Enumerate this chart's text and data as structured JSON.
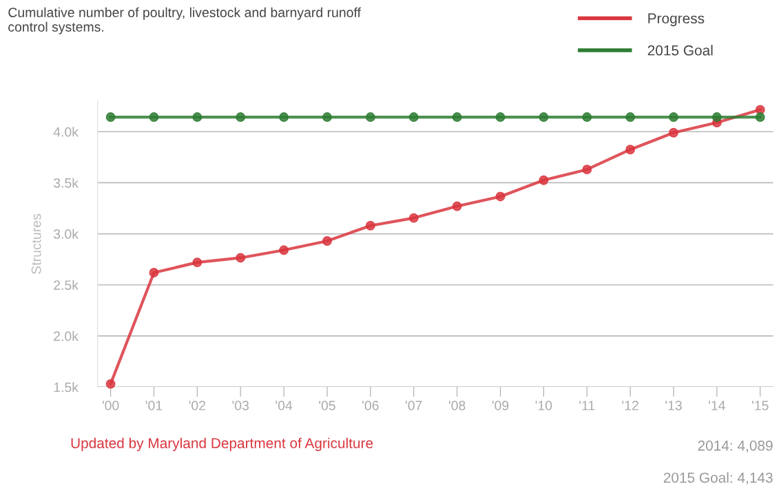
{
  "chart_data": {
    "type": "line",
    "title": "Cumulative number of poultry, livestock and barnyard runoff\ncontrol systems.",
    "ylabel": "Structures",
    "categories": [
      "'00",
      "'01",
      "'02",
      "'03",
      "'04",
      "'05",
      "'06",
      "'07",
      "'08",
      "'09",
      "'10",
      "'11",
      "'12",
      "'13",
      "'14",
      "'15"
    ],
    "series": [
      {
        "name": "Progress",
        "color": "#d9363e",
        "values": [
          1530,
          2620,
          2720,
          2765,
          2840,
          2930,
          3080,
          3155,
          3270,
          3365,
          3525,
          3630,
          3825,
          3990,
          4089,
          4215
        ]
      },
      {
        "name": "2015 Goal",
        "color": "#2e7d32",
        "values": [
          4143,
          4143,
          4143,
          4143,
          4143,
          4143,
          4143,
          4143,
          4143,
          4143,
          4143,
          4143,
          4143,
          4143,
          4143,
          4143
        ]
      }
    ],
    "ylim": [
      1500,
      4300
    ],
    "yticks": [
      {
        "value": 1500,
        "label": "1.5k"
      },
      {
        "value": 2000,
        "label": "2.0k"
      },
      {
        "value": 2500,
        "label": "2.5k"
      },
      {
        "value": 3000,
        "label": "3.0k"
      },
      {
        "value": 3500,
        "label": "3.5k"
      },
      {
        "value": 4000,
        "label": "4.0k"
      }
    ],
    "grid": "y",
    "legend": "top right",
    "marker": "circle",
    "line_style": "solid",
    "annotations": [
      "Updated by Maryland Department of Agriculture",
      "2014: 4,089",
      "2015 Goal: 4,143"
    ]
  }
}
